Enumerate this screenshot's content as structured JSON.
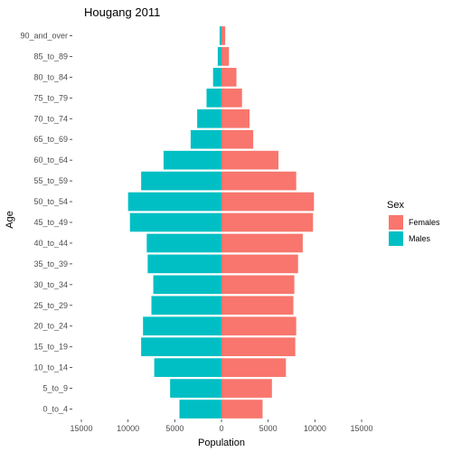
{
  "chart_data": {
    "type": "bar",
    "title": "Hougang  2011",
    "xlabel": "Population",
    "ylabel": "Age",
    "categories": [
      "0_to_4",
      "5_to_9",
      "10_to_14",
      "15_to_19",
      "20_to_24",
      "25_to_29",
      "30_to_34",
      "35_to_39",
      "40_to_44",
      "45_to_49",
      "50_to_54",
      "55_to_59",
      "60_to_64",
      "65_to_69",
      "70_to_74",
      "75_to_79",
      "80_to_84",
      "85_to_89",
      "90_and_over"
    ],
    "series": [
      {
        "name": "Females",
        "color": "#F8766D",
        "values": [
          4400,
          5400,
          6900,
          7900,
          8000,
          7700,
          7800,
          8200,
          8700,
          9800,
          9900,
          8000,
          6100,
          3400,
          3000,
          2200,
          1600,
          800,
          400
        ]
      },
      {
        "name": "Males",
        "color": "#00BFC4",
        "values": [
          4500,
          5500,
          7200,
          8600,
          8400,
          7500,
          7300,
          7900,
          8000,
          9800,
          10000,
          8600,
          6200,
          3300,
          2600,
          1600,
          900,
          400,
          200
        ]
      }
    ],
    "xlim": [
      -15000,
      15000
    ],
    "x_ticks": [
      -15000,
      -10000,
      -5000,
      0,
      5000,
      10000,
      15000
    ],
    "x_tick_labels": [
      "15000",
      "10000",
      "5000",
      "0",
      "5000",
      "10000",
      "15000"
    ],
    "grid": false,
    "orientation": "horizontal",
    "legend": {
      "title": "Sex",
      "position": "right",
      "entries": [
        "Females",
        "Males"
      ]
    }
  }
}
